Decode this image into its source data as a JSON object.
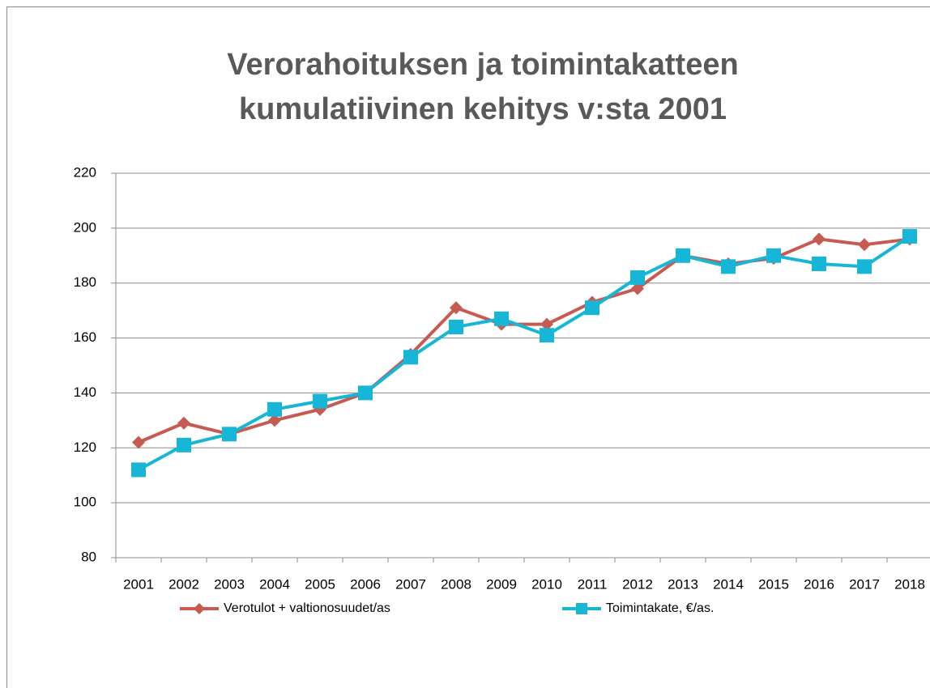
{
  "chart_data": {
    "type": "line",
    "title": [
      "Verorahoituksen ja toimintakatteen",
      "kumulatiivinen kehitys v:sta 2001"
    ],
    "categories": [
      "2001",
      "2002",
      "2003",
      "2004",
      "2005",
      "2006",
      "2007",
      "2008",
      "2009",
      "2010",
      "2011",
      "2012",
      "2013",
      "2014",
      "2015",
      "2016",
      "2017",
      "2018"
    ],
    "series": [
      {
        "name": "Verotulot + valtionosuudet/as",
        "color": "#c65b52",
        "marker": "diamond",
        "values": [
          122,
          129,
          125,
          130,
          134,
          140,
          154,
          171,
          165,
          165,
          173,
          178,
          190,
          187,
          189,
          196,
          194,
          196
        ]
      },
      {
        "name": "Toimintakate, €/as.",
        "color": "#17b5d6",
        "marker": "square",
        "values": [
          112,
          121,
          125,
          134,
          137,
          140,
          153,
          164,
          167,
          161,
          171,
          182,
          190,
          186,
          190,
          187,
          186,
          197
        ]
      }
    ],
    "ylim": [
      80,
      220
    ],
    "yticks": [
      80,
      100,
      120,
      140,
      160,
      180,
      200,
      220
    ],
    "grid": true,
    "legend": "bottom"
  }
}
